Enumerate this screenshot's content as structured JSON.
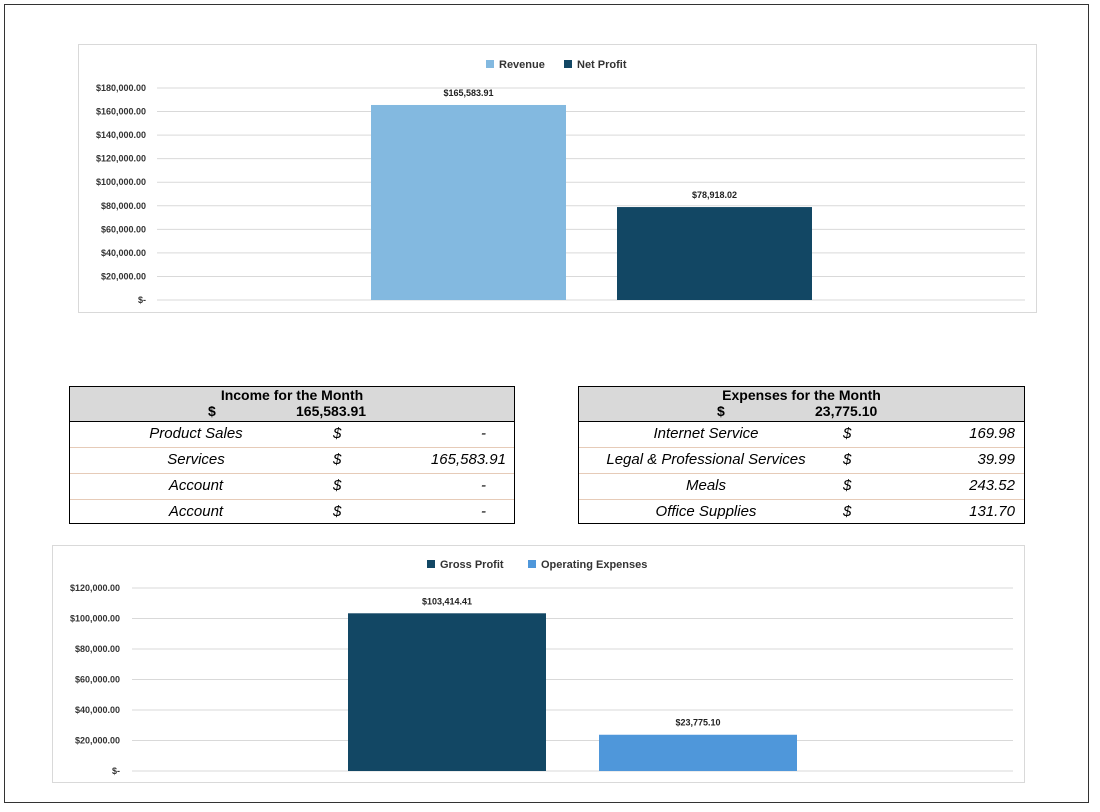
{
  "chart_data": [
    {
      "type": "bar",
      "categories": [
        "Revenue",
        "Net Profit"
      ],
      "values": [
        165583.91,
        78918.02
      ],
      "data_labels": [
        "$165,583.91",
        "$78,918.02"
      ],
      "colors": [
        "#83b9e0",
        "#124764"
      ],
      "legend": [
        "Revenue",
        "Net Profit"
      ],
      "legend_position": "top",
      "ylim": [
        0,
        180000
      ],
      "yticks": [
        0,
        20000,
        40000,
        60000,
        80000,
        100000,
        120000,
        140000,
        160000,
        180000
      ],
      "ytick_labels": [
        "$-",
        "$20,000.00",
        "$40,000.00",
        "$60,000.00",
        "$80,000.00",
        "$100,000.00",
        "$120,000.00",
        "$140,000.00",
        "$160,000.00",
        "$180,000.00"
      ],
      "title": "",
      "xlabel": "",
      "ylabel": "",
      "grid": true
    },
    {
      "type": "bar",
      "categories": [
        "Gross Profit",
        "Operating Expenses"
      ],
      "values": [
        103414.41,
        23775.1
      ],
      "data_labels": [
        "$103,414.41",
        "$23,775.10"
      ],
      "colors": [
        "#124764",
        "#4f97da"
      ],
      "legend": [
        "Gross Profit",
        "Operating Expenses"
      ],
      "legend_position": "top",
      "ylim": [
        0,
        120000
      ],
      "yticks": [
        0,
        20000,
        40000,
        60000,
        80000,
        100000,
        120000
      ],
      "ytick_labels": [
        "$-",
        "$20,000.00",
        "$40,000.00",
        "$60,000.00",
        "$80,000.00",
        "$100,000.00",
        "$120,000.00"
      ],
      "title": "",
      "xlabel": "",
      "ylabel": "",
      "grid": true
    }
  ],
  "income": {
    "title": "Income for the Month",
    "currency": "$",
    "total": "165,583.91",
    "rows": [
      {
        "label": "Product Sales",
        "currency": "$",
        "amount": "-"
      },
      {
        "label": "Services",
        "currency": "$",
        "amount": "165,583.91"
      },
      {
        "label": "Account",
        "currency": "$",
        "amount": "-"
      },
      {
        "label": "Account",
        "currency": "$",
        "amount": "-"
      }
    ]
  },
  "expenses": {
    "title": "Expenses for the Month",
    "currency": "$",
    "total": "23,775.10",
    "rows": [
      {
        "label": "Internet Service",
        "currency": "$",
        "amount": "169.98"
      },
      {
        "label": "Legal & Professional Services",
        "currency": "$",
        "amount": "39.99"
      },
      {
        "label": "Meals",
        "currency": "$",
        "amount": "243.52"
      },
      {
        "label": "Office Supplies",
        "currency": "$",
        "amount": "131.70"
      }
    ]
  }
}
